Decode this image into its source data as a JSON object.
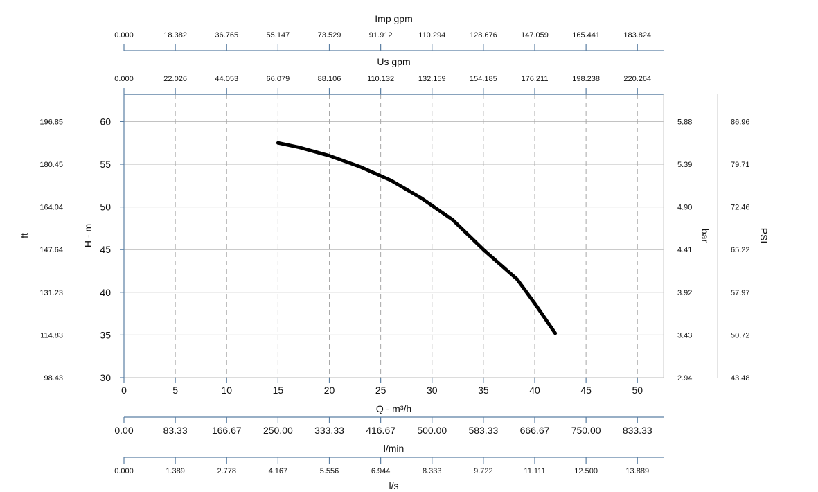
{
  "chart_data": {
    "type": "line",
    "series": [
      {
        "x": [
          15,
          17,
          20,
          23,
          26,
          29,
          32,
          35,
          38.3,
          40,
          42
        ],
        "y": [
          57.5,
          57.0,
          56.0,
          54.7,
          53.1,
          51.0,
          48.5,
          45.0,
          41.5,
          38.7,
          35.2
        ]
      }
    ],
    "xlabel": "Q - m³/h",
    "ylabel": "H - m",
    "xlim": [
      0,
      52.5
    ],
    "ylim": [
      30,
      63
    ],
    "x_ticks": [
      "0",
      "5",
      "10",
      "15",
      "20",
      "25",
      "30",
      "35",
      "40",
      "45",
      "50"
    ],
    "y_ticks": [
      "30",
      "35",
      "40",
      "45",
      "50",
      "55",
      "60"
    ],
    "grid": true,
    "secondary_axes": {
      "imp_gpm": {
        "label": "Imp gpm",
        "ticks": [
          "0.000",
          "18.382",
          "36.765",
          "55.147",
          "73.529",
          "91.912",
          "110.294",
          "128.676",
          "147.059",
          "165.441",
          "183.824"
        ]
      },
      "us_gpm": {
        "label": "Us gpm",
        "ticks": [
          "0.000",
          "22.026",
          "44.053",
          "66.079",
          "88.106",
          "110.132",
          "132.159",
          "154.185",
          "176.211",
          "198.238",
          "220.264"
        ]
      },
      "lmin": {
        "label": "l/min",
        "ticks": [
          "0.00",
          "83.33",
          "166.67",
          "250.00",
          "333.33",
          "416.67",
          "500.00",
          "583.33",
          "666.67",
          "750.00",
          "833.33"
        ]
      },
      "ls": {
        "label": "l/s",
        "ticks": [
          "0.000",
          "1.389",
          "2.778",
          "4.167",
          "5.556",
          "6.944",
          "8.333",
          "9.722",
          "11.111",
          "12.500",
          "13.889"
        ]
      },
      "ft": {
        "label": "ft",
        "ticks": [
          "98.43",
          "114.83",
          "131.23",
          "147.64",
          "164.04",
          "180.45",
          "196.85"
        ]
      },
      "bar": {
        "label": "bar",
        "ticks": [
          "2.94",
          "3.43",
          "3.92",
          "4.41",
          "4.90",
          "5.39",
          "5.88"
        ]
      },
      "psi": {
        "label": "PSI",
        "ticks": [
          "43.48",
          "50.72",
          "57.97",
          "65.22",
          "72.46",
          "79.71",
          "86.96"
        ]
      }
    }
  }
}
